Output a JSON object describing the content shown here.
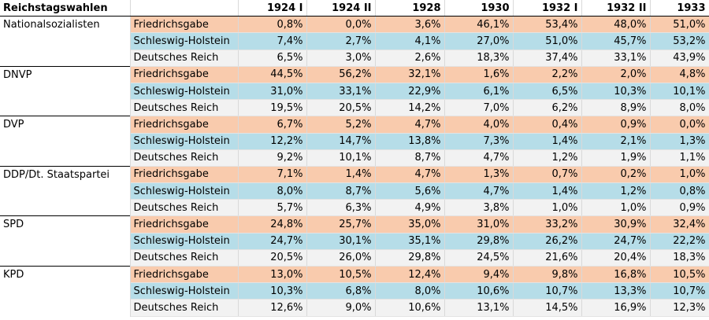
{
  "table": {
    "title": "Reichstagswahlen",
    "columns": [
      "1924 I",
      "1924 II",
      "1928",
      "1930",
      "1932 I",
      "1932 II",
      "1933"
    ],
    "groups": [
      {
        "party": "Nationalsozialisten",
        "rows": [
          {
            "region": "Friedrichsgabe",
            "values": [
              "0,8%",
              "0,0%",
              "3,6%",
              "46,1%",
              "53,4%",
              "48,0%",
              "51,0%"
            ]
          },
          {
            "region": "Schleswig-Holstein",
            "values": [
              "7,4%",
              "2,7%",
              "4,1%",
              "27,0%",
              "51,0%",
              "45,7%",
              "53,2%"
            ]
          },
          {
            "region": "Deutsches Reich",
            "values": [
              "6,5%",
              "3,0%",
              "2,6%",
              "18,3%",
              "37,4%",
              "33,1%",
              "43,9%"
            ]
          }
        ]
      },
      {
        "party": "DNVP",
        "rows": [
          {
            "region": "Friedrichsgabe",
            "values": [
              "44,5%",
              "56,2%",
              "32,1%",
              "1,6%",
              "2,2%",
              "2,0%",
              "4,8%"
            ]
          },
          {
            "region": "Schleswig-Holstein",
            "values": [
              "31,0%",
              "33,1%",
              "22,9%",
              "6,1%",
              "6,5%",
              "10,3%",
              "10,1%"
            ]
          },
          {
            "region": "Deutsches Reich",
            "values": [
              "19,5%",
              "20,5%",
              "14,2%",
              "7,0%",
              "6,2%",
              "8,9%",
              "8,0%"
            ]
          }
        ]
      },
      {
        "party": "DVP",
        "rows": [
          {
            "region": "Friedrichsgabe",
            "values": [
              "6,7%",
              "5,2%",
              "4,7%",
              "4,0%",
              "0,4%",
              "0,9%",
              "0,0%"
            ]
          },
          {
            "region": "Schleswig-Holstein",
            "values": [
              "12,2%",
              "14,7%",
              "13,8%",
              "7,3%",
              "1,4%",
              "2,1%",
              "1,3%"
            ]
          },
          {
            "region": "Deutsches Reich",
            "values": [
              "9,2%",
              "10,1%",
              "8,7%",
              "4,7%",
              "1,2%",
              "1,9%",
              "1,1%"
            ]
          }
        ]
      },
      {
        "party": "DDP/Dt. Staatspartei",
        "rows": [
          {
            "region": "Friedrichsgabe",
            "values": [
              "7,1%",
              "1,4%",
              "4,7%",
              "1,3%",
              "0,7%",
              "0,2%",
              "1,0%"
            ]
          },
          {
            "region": "Schleswig-Holstein",
            "values": [
              "8,0%",
              "8,7%",
              "5,6%",
              "4,7%",
              "1,4%",
              "1,2%",
              "0,8%"
            ]
          },
          {
            "region": "Deutsches Reich",
            "values": [
              "5,7%",
              "6,3%",
              "4,9%",
              "3,8%",
              "1,0%",
              "1,0%",
              "0,9%"
            ]
          }
        ]
      },
      {
        "party": "SPD",
        "rows": [
          {
            "region": "Friedrichsgabe",
            "values": [
              "24,8%",
              "25,7%",
              "35,0%",
              "31,0%",
              "33,2%",
              "30,9%",
              "32,4%"
            ]
          },
          {
            "region": "Schleswig-Holstein",
            "values": [
              "24,7%",
              "30,1%",
              "35,1%",
              "29,8%",
              "26,2%",
              "24,7%",
              "22,2%"
            ]
          },
          {
            "region": "Deutsches Reich",
            "values": [
              "20,5%",
              "26,0%",
              "29,8%",
              "24,5%",
              "21,6%",
              "20,4%",
              "18,3%"
            ]
          }
        ]
      },
      {
        "party": "KPD",
        "rows": [
          {
            "region": "Friedrichsgabe",
            "values": [
              "13,0%",
              "10,5%",
              "12,4%",
              "9,4%",
              "9,8%",
              "16,8%",
              "10,5%"
            ]
          },
          {
            "region": "Schleswig-Holstein",
            "values": [
              "10,3%",
              "6,8%",
              "8,0%",
              "10,6%",
              "10,7%",
              "13,3%",
              "10,7%"
            ]
          },
          {
            "region": "Deutsches Reich",
            "values": [
              "12,6%",
              "9,0%",
              "10,6%",
              "13,1%",
              "14,5%",
              "16,9%",
              "12,3%"
            ]
          }
        ]
      }
    ]
  },
  "colors": {
    "friedrichsgabe_fill": "#f9cbad",
    "schleswig_holstein_fill": "#b6dde8",
    "deutsches_reich_fill": "#f2f2f2"
  }
}
